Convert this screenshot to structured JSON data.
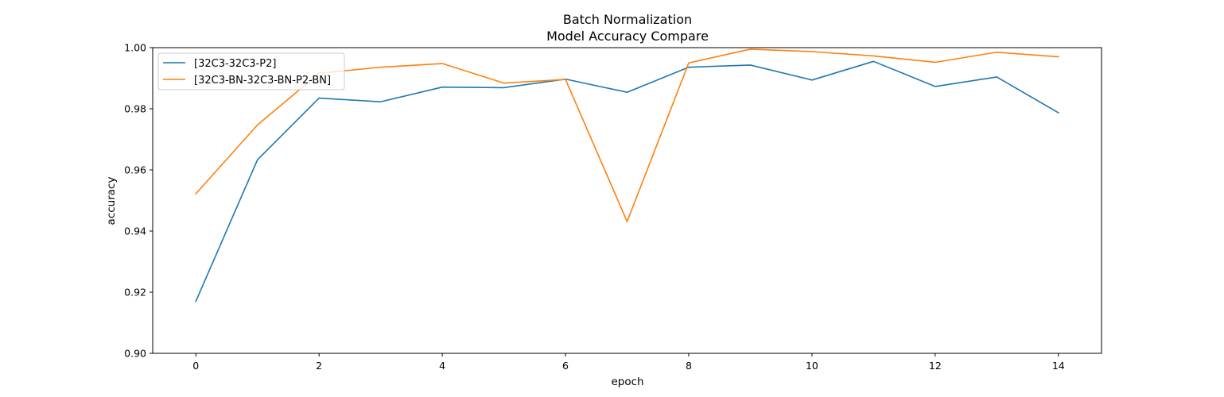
{
  "chart_data": {
    "type": "line",
    "title": "Batch Normalization",
    "subtitle": "Model Accuracy Compare",
    "xlabel": "epoch",
    "ylabel": "accuracy",
    "xlim": [
      -0.7,
      14.7
    ],
    "ylim": [
      0.9,
      1.0
    ],
    "x_ticks": [
      0,
      2,
      4,
      6,
      8,
      10,
      12,
      14
    ],
    "y_ticks": [
      0.9,
      0.92,
      0.94,
      0.96,
      0.98,
      1.0
    ],
    "y_tick_labels": [
      "0.90",
      "0.92",
      "0.94",
      "0.96",
      "0.98",
      "1.00"
    ],
    "grid": false,
    "legend_position": "top-left",
    "x": [
      0,
      1,
      2,
      3,
      4,
      5,
      6,
      7,
      8,
      9,
      10,
      11,
      12,
      13,
      14
    ],
    "series": [
      {
        "name": "[32C3-32C3-P2]",
        "color": "#1f77b4",
        "values": [
          0.917,
          0.9633,
          0.9835,
          0.9823,
          0.9871,
          0.9869,
          0.9897,
          0.9854,
          0.9936,
          0.9943,
          0.9894,
          0.9955,
          0.9873,
          0.9904,
          0.9787
        ]
      },
      {
        "name": "[32C3-BN-32C3-BN-P2-BN]",
        "color": "#ff7f0e",
        "values": [
          0.9522,
          0.9747,
          0.9916,
          0.9936,
          0.9948,
          0.9884,
          0.9896,
          0.9431,
          0.995,
          0.9995,
          0.9987,
          0.9973,
          0.9952,
          0.9985,
          0.997
        ]
      }
    ]
  }
}
